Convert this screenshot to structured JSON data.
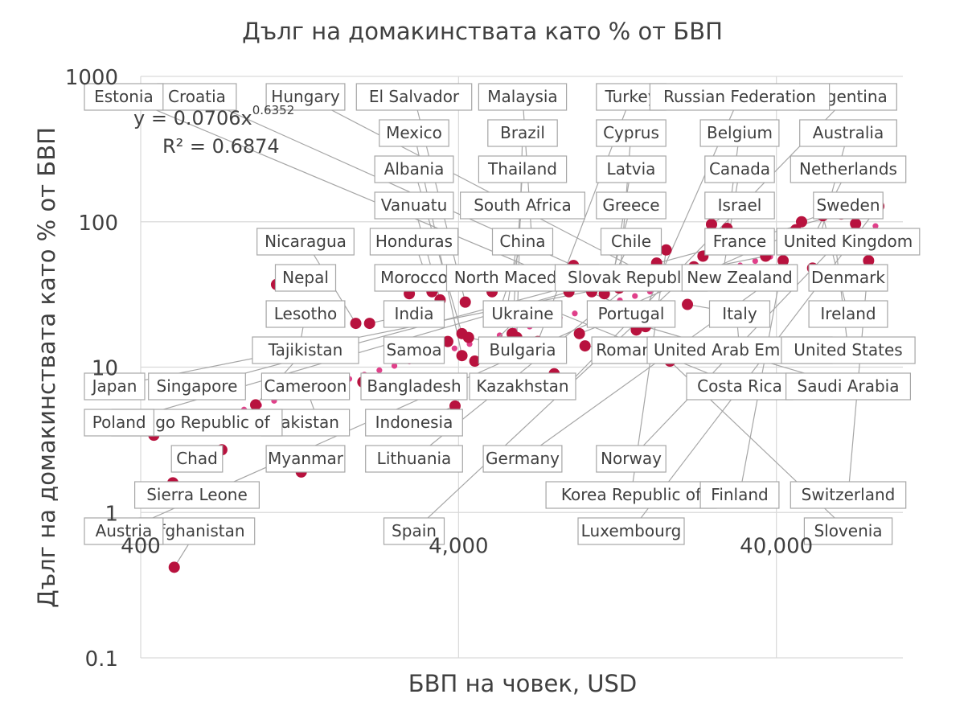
{
  "chart_data": {
    "type": "scatter",
    "title": "Дълг на домакинствата като % от БВП",
    "xlabel": "БВП на човек, USD",
    "ylabel": "Дълг на домакинствата като % от БВП",
    "x_scale": "log",
    "y_scale": "log",
    "xlim": [
      400,
      100000
    ],
    "ylim": [
      0.1,
      1000
    ],
    "x_ticks": [
      400,
      4000,
      40000
    ],
    "x_tick_labels": [
      "400",
      "4,000",
      "40,000"
    ],
    "y_ticks": [
      0.1,
      1,
      10,
      100,
      1000
    ],
    "y_tick_labels": [
      "0.1",
      "1",
      "10",
      "100",
      "1000"
    ],
    "grid": true,
    "colors": {
      "points": "#b8123e",
      "trendline": "#e0408a",
      "text": "#404040",
      "grid": "#d9d9d9"
    },
    "trendline": {
      "type": "power",
      "coefficient": 0.0706,
      "exponent": 0.6352,
      "equation_prefix": "y = 0.0706x",
      "equation_exponent": "0.6352",
      "r_squared_text": "R² = 0.6874"
    },
    "points": [
      {
        "name": "Afghanistan",
        "x": 510,
        "y": 0.42
      },
      {
        "name": "Sierra Leone",
        "x": 505,
        "y": 1.6
      },
      {
        "name": "Chad",
        "x": 720,
        "y": 2.7
      },
      {
        "name": "Myanmar",
        "x": 1280,
        "y": 1.9
      },
      {
        "name": "Pakistan",
        "x": 1170,
        "y": 3.9
      },
      {
        "name": "Cameroon",
        "x": 1450,
        "y": 4.2
      },
      {
        "name": "Congo Republic of",
        "x": 440,
        "y": 3.4
      },
      {
        "name": "Tajikistan",
        "x": 920,
        "y": 5.5
      },
      {
        "name": "Lesotho",
        "x": 1250,
        "y": 12
      },
      {
        "name": "Nepal",
        "x": 1070,
        "y": 37
      },
      {
        "name": "Bangladesh",
        "x": 2000,
        "y": 7.9
      },
      {
        "name": "India",
        "x": 2100,
        "y": 20
      },
      {
        "name": "Nicaragua",
        "x": 1900,
        "y": 20
      },
      {
        "name": "Morocco",
        "x": 2800,
        "y": 32
      },
      {
        "name": "Honduras",
        "x": 3300,
        "y": 33
      },
      {
        "name": "Vanuatu",
        "x": 3500,
        "y": 29
      },
      {
        "name": "Samoa",
        "x": 3700,
        "y": 15
      },
      {
        "name": "Albania",
        "x": 4100,
        "y": 17
      },
      {
        "name": "Indonesia",
        "x": 3900,
        "y": 5.4
      },
      {
        "name": "Bulgaria",
        "x": 4300,
        "y": 16
      },
      {
        "name": "Mexico",
        "x": 4100,
        "y": 12
      },
      {
        "name": "Ukraine",
        "x": 4500,
        "y": 11
      },
      {
        "name": "El Salvador",
        "x": 4200,
        "y": 28
      },
      {
        "name": "North Macedonia",
        "x": 5100,
        "y": 33
      },
      {
        "name": "China",
        "x": 5400,
        "y": 25
      },
      {
        "name": "South Africa",
        "x": 5700,
        "y": 26
      },
      {
        "name": "Thailand",
        "x": 5900,
        "y": 17
      },
      {
        "name": "Brazil",
        "x": 6100,
        "y": 16
      },
      {
        "name": "Malaysia",
        "x": 6800,
        "y": 76
      },
      {
        "name": "Turkey",
        "x": 7100,
        "y": 15
      },
      {
        "name": "Costa Rica",
        "x": 7400,
        "y": 26
      },
      {
        "name": "Kazakhstan",
        "x": 8000,
        "y": 9
      },
      {
        "name": "Argentina",
        "x": 8300,
        "y": 6.6
      },
      {
        "name": "Poland",
        "x": 8900,
        "y": 33
      },
      {
        "name": "Romania",
        "x": 10000,
        "y": 14
      },
      {
        "name": "Portugal",
        "x": 9600,
        "y": 17
      },
      {
        "name": "Croatia",
        "x": 9200,
        "y": 50
      },
      {
        "name": "Slovak Republic",
        "x": 10500,
        "y": 33
      },
      {
        "name": "Chile",
        "x": 11500,
        "y": 32
      },
      {
        "name": "Greece",
        "x": 12000,
        "y": 38
      },
      {
        "name": "Latvia",
        "x": 12300,
        "y": 44
      },
      {
        "name": "Cyprus",
        "x": 12800,
        "y": 35
      },
      {
        "name": "Russian Federation",
        "x": 14500,
        "y": 18
      },
      {
        "name": "Saudi Arabia",
        "x": 15500,
        "y": 19
      },
      {
        "name": "Estonia",
        "x": 16000,
        "y": 22
      },
      {
        "name": "Hungary",
        "x": 16500,
        "y": 41
      },
      {
        "name": "Lithuania",
        "x": 16800,
        "y": 52
      },
      {
        "name": "Korea Republic of",
        "x": 18000,
        "y": 64
      },
      {
        "name": "Slovenia",
        "x": 18500,
        "y": 11
      },
      {
        "name": "Spain",
        "x": 19500,
        "y": 37
      },
      {
        "name": "Italy",
        "x": 21000,
        "y": 27
      },
      {
        "name": "New Zealand",
        "x": 22000,
        "y": 49
      },
      {
        "name": "France",
        "x": 23500,
        "y": 58
      },
      {
        "name": "Israel",
        "x": 25000,
        "y": 96
      },
      {
        "name": "Canada",
        "x": 27000,
        "y": 41
      },
      {
        "name": "Belgium",
        "x": 28000,
        "y": 90
      },
      {
        "name": "United Arab Emirates",
        "x": 30000,
        "y": 22
      },
      {
        "name": "Japan",
        "x": 37000,
        "y": 58
      },
      {
        "name": "Germany",
        "x": 40000,
        "y": 42
      },
      {
        "name": "Finland",
        "x": 42000,
        "y": 54
      },
      {
        "name": "Austria",
        "x": 44000,
        "y": 82
      },
      {
        "name": "United Kingdom",
        "x": 46000,
        "y": 88
      },
      {
        "name": "Sweden",
        "x": 48000,
        "y": 100
      },
      {
        "name": "Netherlands",
        "x": 50000,
        "y": 65
      },
      {
        "name": "Denmark",
        "x": 52000,
        "y": 48
      },
      {
        "name": "Australia",
        "x": 54000,
        "y": 70
      },
      {
        "name": "Ireland",
        "x": 56000,
        "y": 110
      },
      {
        "name": "United States",
        "x": 61000,
        "y": 78
      },
      {
        "name": "Singapore",
        "x": 64000,
        "y": 113
      },
      {
        "name": "Norway",
        "x": 71000,
        "y": 97
      },
      {
        "name": "Switzerland",
        "x": 78000,
        "y": 54
      },
      {
        "name": "Luxembourg",
        "x": 84000,
        "y": 128
      }
    ]
  }
}
